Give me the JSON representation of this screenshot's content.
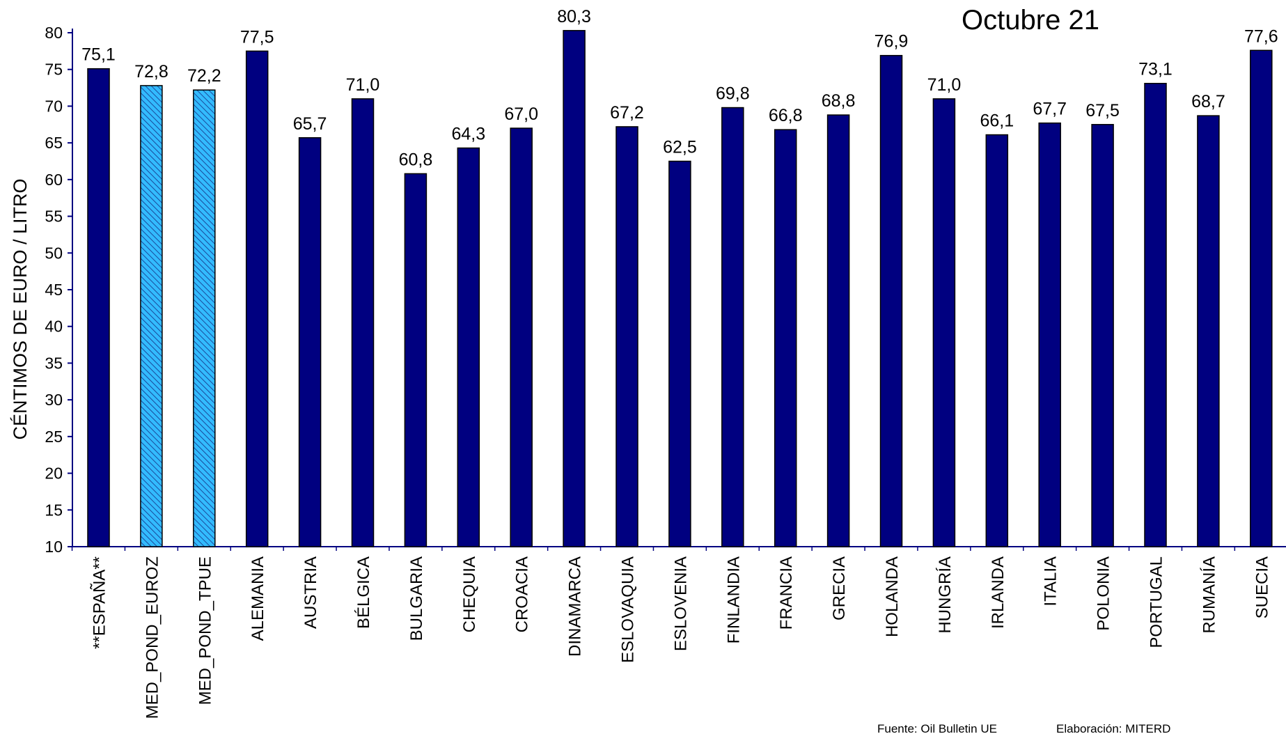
{
  "chart_data": {
    "type": "bar",
    "title": "Octubre 21",
    "xlabel": "",
    "ylabel": "CÉNTIMOS DE EURO / LITRO",
    "ylim": [
      10,
      80
    ],
    "yticks": [
      10,
      15,
      20,
      25,
      30,
      35,
      40,
      45,
      50,
      55,
      60,
      65,
      70,
      75,
      80
    ],
    "grid": false,
    "categories": [
      "**ESPAÑA**",
      "MED_POND_EUROZ",
      "MED_POND_TPUE",
      "ALEMANIA",
      "AUSTRIA",
      "BÉLGICA",
      "BULGARIA",
      "CHEQUIA",
      "CROACIA",
      "DINAMARCA",
      "ESLOVAQUIA",
      "ESLOVENIA",
      "FINLANDIA",
      "FRANCIA",
      "GRECIA",
      "HOLANDA",
      "HUNGRÍA",
      "IRLANDA",
      "ITALIA",
      "POLONIA",
      "PORTUGAL",
      "RUMANÍA",
      "SUECIA"
    ],
    "values": [
      75.1,
      72.8,
      72.2,
      77.5,
      65.7,
      71.0,
      60.8,
      64.3,
      67.0,
      80.3,
      67.2,
      62.5,
      69.8,
      66.8,
      68.8,
      76.9,
      71.0,
      66.1,
      67.7,
      67.5,
      73.1,
      68.7,
      77.6
    ],
    "value_labels": [
      "75,1",
      "72,8",
      "72,2",
      "77,5",
      "65,7",
      "71,0",
      "60,8",
      "64,3",
      "67,0",
      "80,3",
      "67,2",
      "62,5",
      "69,8",
      "66,8",
      "68,8",
      "76,9",
      "71,0",
      "66,1",
      "67,7",
      "67,5",
      "73,1",
      "68,7",
      "77,6"
    ],
    "highlighted": [
      "MED_POND_EUROZ",
      "MED_POND_TPUE"
    ],
    "colors": {
      "bar": "#000080",
      "highlight": "#33bbff",
      "axis": "#000080",
      "outline": "#000000"
    }
  },
  "footer": {
    "source": "Fuente: Oil Bulletin UE",
    "elaboration": "Elaboración: MITERD"
  }
}
